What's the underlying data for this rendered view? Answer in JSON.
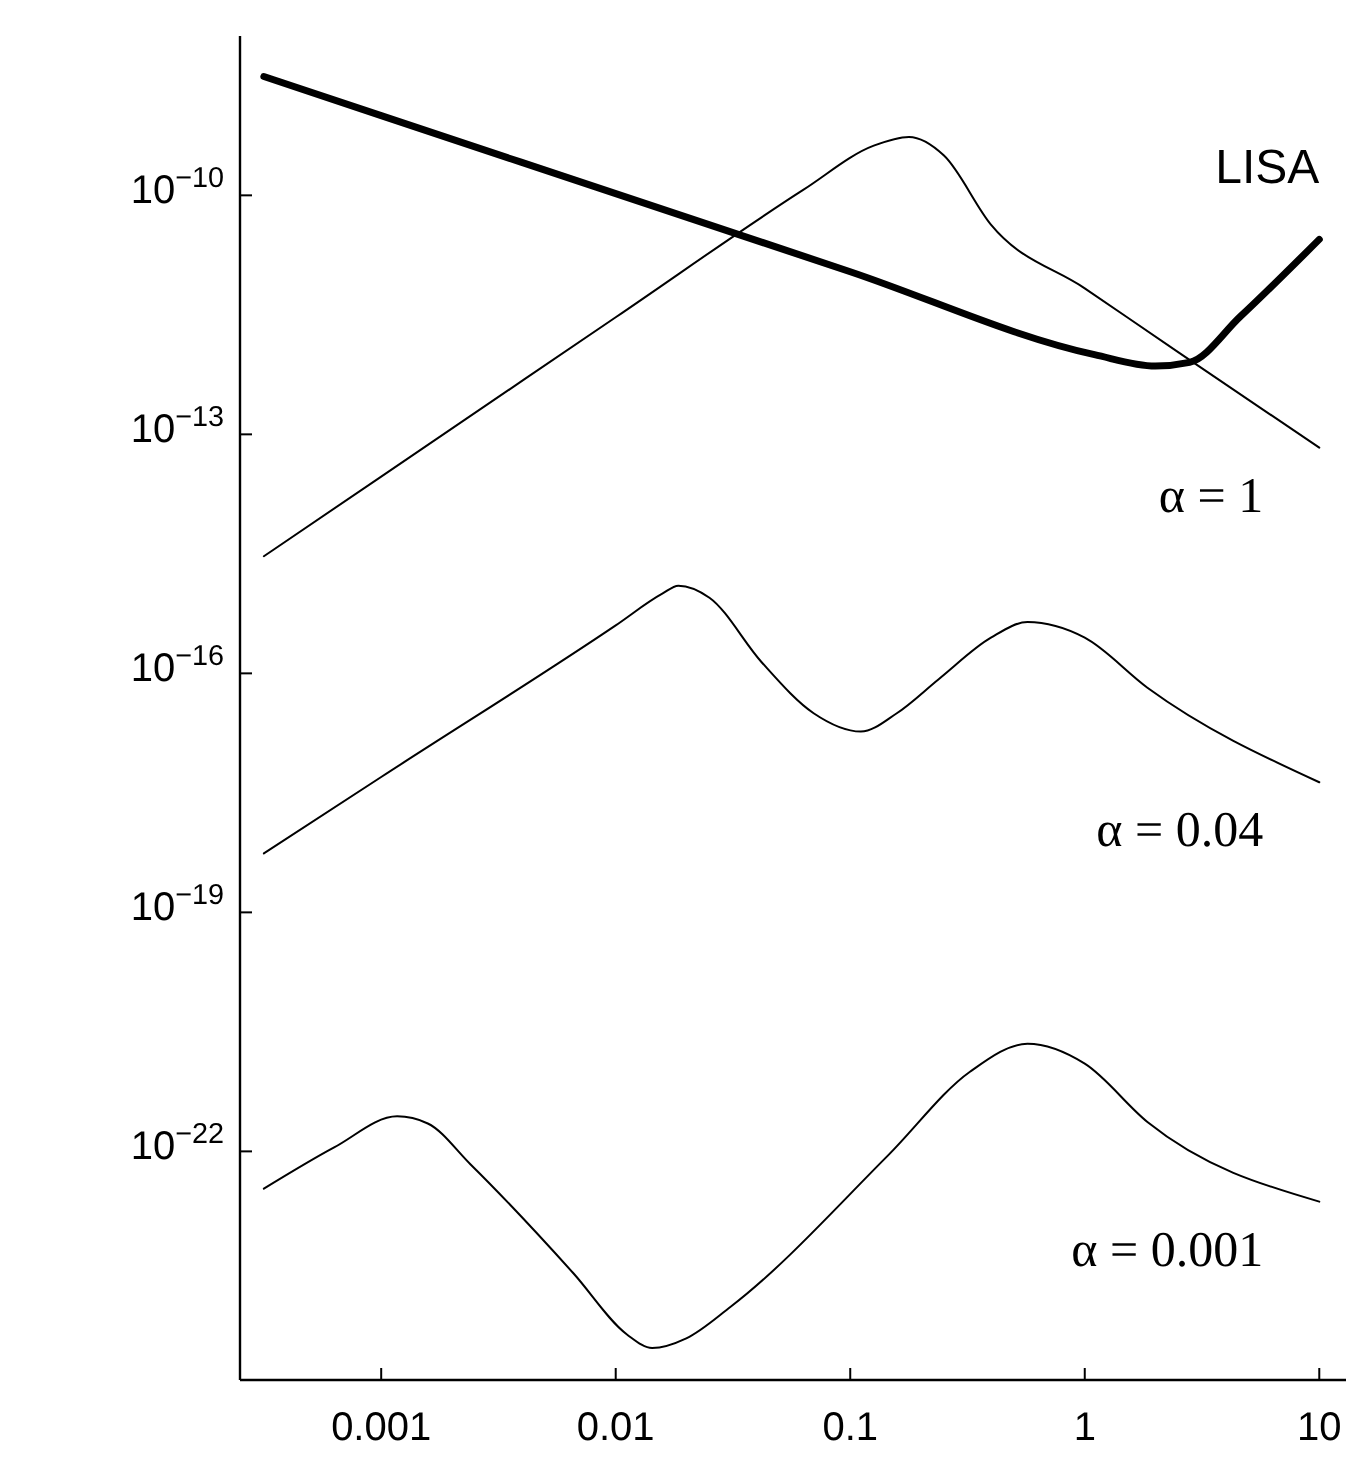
{
  "chart_data": {
    "type": "line",
    "log": "xy",
    "grid": false,
    "legend": false,
    "marker": "none",
    "line_style": "solid",
    "xlim": [
      0.00025,
      13
    ],
    "ylim": [
      1.35e-25,
      1e-08
    ],
    "xticks": [
      0.001,
      0.01,
      0.1,
      1,
      10
    ],
    "yticks": [
      {
        "value": 1e-10,
        "label": "10$^{−10}$"
      },
      {
        "value": 1e-13,
        "label": "10$^{−13}$"
      },
      {
        "value": 1e-16,
        "label": "10$^{−16}$"
      },
      {
        "value": 1e-19,
        "label": "10$^{−19}$"
      },
      {
        "value": 1e-22,
        "label": "10$^{−22}$"
      }
    ],
    "series": [
      {
        "name": "LISA",
        "color": "#000000",
        "x": [
          0.000316,
          0.001,
          0.01,
          0.1,
          1.1,
          2.0,
          2.8,
          4.6,
          10
        ],
        "values": [
          3.1e-09,
          1e-09,
          1.05e-10,
          1.1e-11,
          1e-12,
          7.2e-13,
          8e-13,
          3e-12,
          2.8e-11
        ]
      },
      {
        "name": "α = 1",
        "color": "#000000",
        "x": [
          0.000316,
          0.001,
          0.01,
          0.063,
          0.126,
          0.178,
          0.251,
          0.398,
          1,
          2.51,
          10
        ],
        "values": [
          2.95e-15,
          2.95e-14,
          2.95e-12,
          1.17e-10,
          4.2e-10,
          5.4e-10,
          3.16e-10,
          4.3e-11,
          6.8e-12,
          1.07e-12,
          6.8e-14
        ]
      },
      {
        "name": "α = 0.04",
        "color": "#000000",
        "x": [
          0.000316,
          0.001,
          0.01,
          0.0158,
          0.0185,
          0.0251,
          0.0419,
          0.0698,
          0.111,
          0.158,
          0.239,
          0.398,
          0.57,
          1,
          1.85,
          10
        ],
        "values": [
          5.5e-19,
          5e-18,
          4e-16,
          1e-15,
          1.26e-15,
          8.9e-16,
          1.38e-16,
          3.16e-17,
          1.86e-17,
          3.16e-17,
          8.5e-17,
          2.8e-16,
          4.4e-16,
          2.8e-16,
          6.6e-17,
          4.3e-18
        ]
      },
      {
        "name": "α = 0.001",
        "color": "#000000",
        "x": [
          0.000316,
          0.00063,
          0.00117,
          0.00158,
          0.0024,
          0.0066,
          0.0112,
          0.0143,
          0.02,
          0.0309,
          0.145,
          0.324,
          0.57,
          1,
          1.85,
          10
        ],
        "values": [
          3.4e-23,
          1.12e-22,
          2.75e-22,
          2.24e-22,
          6.9e-23,
          2.95e-24,
          5e-25,
          3.4e-25,
          4.5e-25,
          1.12e-24,
          8.9e-23,
          1e-21,
          2.24e-21,
          1.26e-21,
          2.34e-22,
          2.34e-23
        ]
      }
    ]
  }
}
